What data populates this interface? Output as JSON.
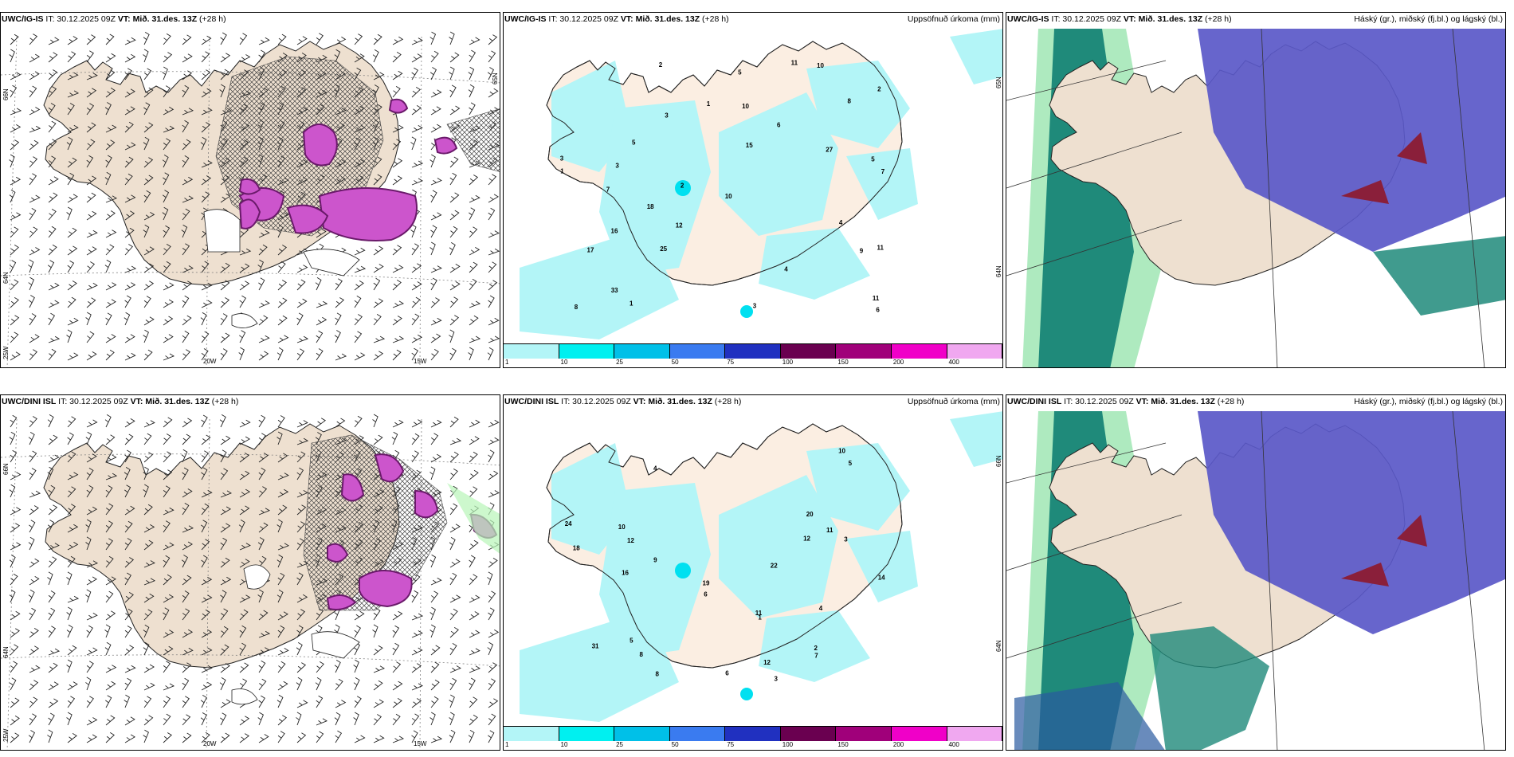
{
  "panels": [
    {
      "id": "p1",
      "model": "UWC/IG-IS",
      "it": "IT: 30.12.2025 09Z",
      "vt": "VT: Mið. 31.des. 13Z",
      "lead": "(+28 h)",
      "right": "",
      "lat_labels": [
        "66N",
        "64N"
      ],
      "lat_edge": "65N",
      "lon_labels": [
        "20W",
        "15W"
      ],
      "corner": "25W"
    },
    {
      "id": "p2",
      "model": "UWC/IG-IS",
      "it": "IT: 30.12.2025 09Z",
      "vt": "VT: Mið. 31.des. 13Z",
      "lead": "(+28 h)",
      "right": "Uppsöfnuð úrkoma (mm)",
      "lat_labels": [
        "65N",
        "64N"
      ]
    },
    {
      "id": "p3",
      "model": "UWC/IG-IS",
      "it": "IT: 30.12.2025 09Z",
      "vt": "VT: Mið. 31.des. 13Z",
      "lead": "(+28 h)",
      "right": "Háský (gr.), miðský (fj.bl.) og lágský (bl.)"
    },
    {
      "id": "p4",
      "model": "UWC/DINI ISL",
      "it": "IT: 30.12.2025 09Z",
      "vt": "VT: Mið. 31.des. 13Z",
      "lead": "(+28 h)",
      "right": "",
      "lat_labels": [
        "66N",
        "64N"
      ],
      "lon_labels": [
        "20W",
        "15W"
      ],
      "corner": "25W"
    },
    {
      "id": "p5",
      "model": "UWC/DINI ISL",
      "it": "IT: 30.12.2025 09Z",
      "vt": "VT: Mið. 31.des. 13Z",
      "lead": "(+28 h)",
      "right": "Uppsöfnuð úrkoma (mm)",
      "lat_labels": [
        "66N",
        "64N"
      ]
    },
    {
      "id": "p6",
      "model": "UWC/DINI ISL",
      "it": "IT: 30.12.2025 09Z",
      "vt": "VT: Mið. 31.des. 13Z",
      "lead": "(+28 h)",
      "right": "Háský (gr.), miðský (fj.bl.) og lágský (bl.)"
    }
  ],
  "colorbar": {
    "ticks": [
      "1",
      "10",
      "25",
      "50",
      "75",
      "100",
      "150",
      "200",
      "400"
    ],
    "colors": [
      "#b3f5f7",
      "#00f0f0",
      "#00c0e8",
      "#3a7bf0",
      "#2030c0",
      "#6a0050",
      "#a0007a",
      "#f000c8",
      "#f0a8f0"
    ]
  },
  "precip_labels_p2": [
    "3",
    "5",
    "6",
    "7",
    "2",
    "11",
    "12",
    "11",
    "9",
    "8",
    "5",
    "4",
    "27",
    "25",
    "17",
    "10",
    "18",
    "3",
    "2",
    "1",
    "11",
    "10",
    "33",
    "16",
    "15",
    "10",
    "8",
    "4",
    "3",
    "2",
    "1",
    "6",
    "7",
    "5",
    "3",
    "1"
  ],
  "precip_labels_p5": [
    "3",
    "4",
    "5",
    "10",
    "11",
    "12",
    "14",
    "9",
    "6",
    "8",
    "31",
    "24",
    "19",
    "11",
    "12",
    "10",
    "18",
    "5",
    "4",
    "3",
    "2",
    "1",
    "8",
    "7",
    "22",
    "20",
    "16",
    "12",
    "6"
  ],
  "colors": {
    "land": "#eee0d0",
    "land_light": "#fbeee2",
    "precip": "#b3f5f7",
    "precip_mid": "#00e0f0",
    "pink": "#cc55cc",
    "pink_dark": "#6a1a6a",
    "cloud_high": "#1f8a7a",
    "cloud_low": "#5a58c8",
    "cloud_green": "#aeeabf",
    "cloud_red": "#8a1f3a"
  }
}
